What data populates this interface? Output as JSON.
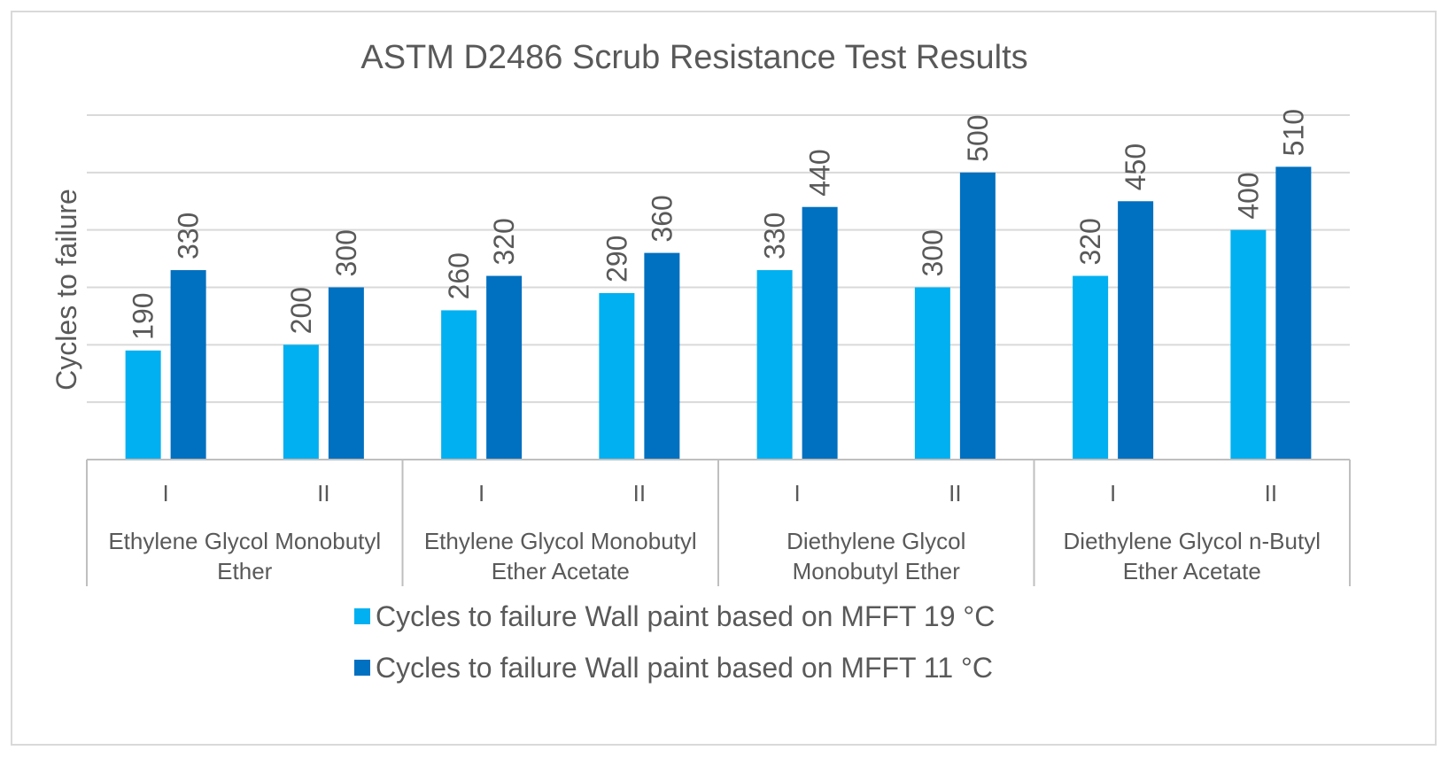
{
  "chart_data": {
    "type": "bar",
    "title": "ASTM D2486 Scrub Resistance Test Results",
    "ylabel": "Cycles to failure",
    "xlabel": "",
    "ylim": [
      0,
      600
    ],
    "gridlines": [
      100,
      200,
      300,
      400,
      500,
      600
    ],
    "y_tick_labels_visible": false,
    "grid": true,
    "legend_position": "bottom",
    "groups": [
      {
        "label": "Ethylene Glycol Monobutyl Ether",
        "label_lines": [
          "Ethylene Glycol Monobutyl",
          "Ether"
        ],
        "subcategories": [
          "I",
          "II"
        ]
      },
      {
        "label": "Ethylene Glycol Monobutyl Ether Acetate",
        "label_lines": [
          "Ethylene Glycol Monobutyl",
          "Ether Acetate"
        ],
        "subcategories": [
          "I",
          "II"
        ]
      },
      {
        "label": "Diethylene Glycol Monobutyl Ether",
        "label_lines": [
          "Diethylene Glycol",
          "Monobutyl Ether"
        ],
        "subcategories": [
          "I",
          "II"
        ]
      },
      {
        "label": "Diethylene Glycol n-Butyl Ether Acetate",
        "label_lines": [
          "Diethylene Glycol n-Butyl",
          "Ether Acetate"
        ],
        "subcategories": [
          "I",
          "II"
        ]
      }
    ],
    "series": [
      {
        "name": "Cycles to failure Wall paint based on MFFT 19 °C",
        "color": "#00b0f0",
        "values": [
          190,
          200,
          260,
          290,
          330,
          300,
          320,
          400
        ]
      },
      {
        "name": "Cycles to failure Wall paint based on MFFT 11 °C",
        "color": "#0070c0",
        "values": [
          330,
          300,
          320,
          360,
          440,
          500,
          450,
          510
        ]
      }
    ],
    "data_labels_rotated": true
  }
}
